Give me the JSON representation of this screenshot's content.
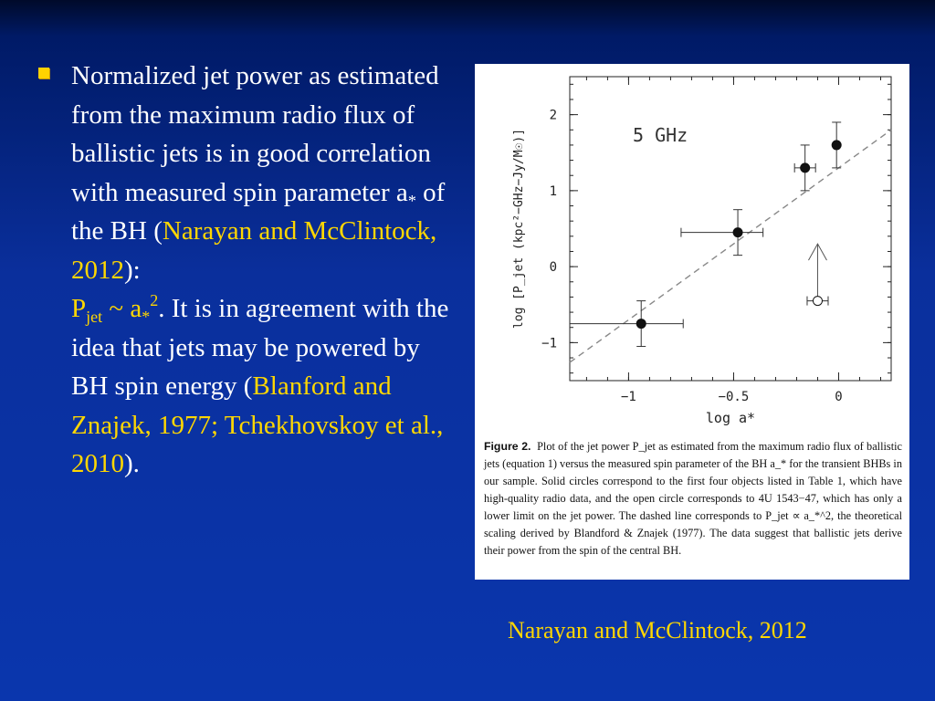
{
  "slide": {
    "bullet": {
      "part1": "Normalized jet power as estimated from the maximum radio flux of ballistic jets is in good correlation with measured spin parameter a",
      "part1_sub": "*",
      "part1_tail": " of  the BH (",
      "cite1": "Narayan and McClintock, 2012",
      "part2": "):",
      "formula_p": "P",
      "formula_sub": "jet",
      "formula_mid": " ~ a",
      "formula_sub2": "*",
      "formula_sup": "2",
      "part3": ". It is in agreement with the idea that jets may be powered by BH spin energy (",
      "cite2": "Blanford and Znajek, 1977; Tchekhovskoy et al., 2010",
      "part4": ")."
    },
    "footer_citation": "Narayan and McClintock, 2012"
  },
  "figure": {
    "caption_label": "Figure 2.",
    "caption_text": "Plot of the jet power P_jet as estimated from the maximum radio flux of ballistic jets (equation 1) versus the measured spin parameter of the BH a_* for the transient BHBs in our sample. Solid circles correspond to the first four objects listed in Table 1, which have high-quality radio data, and the open circle corresponds to 4U 1543−47, which has only a lower limit on the jet power. The dashed line corresponds to P_jet ∝ a_*^2, the theoretical scaling derived by Blandford & Znajek (1977). The data suggest that ballistic jets derive their power from the spin of the central BH."
  },
  "chart_data": {
    "type": "scatter",
    "title": "",
    "annotation": "5 GHz",
    "xlabel": "log a*",
    "ylabel": "log [P_jet (kpc²−GHz−Jy/M☉)]",
    "xlim": [
      -1.28,
      0.25
    ],
    "ylim": [
      -1.5,
      2.5
    ],
    "x_ticks": [
      -1,
      -0.5,
      0
    ],
    "x_tick_labels": [
      "−1",
      "−0.5",
      "0"
    ],
    "y_ticks": [
      -1,
      0,
      1,
      2
    ],
    "y_tick_labels": [
      "−1",
      "0",
      "1",
      "2"
    ],
    "grid": false,
    "points": [
      {
        "x": -0.94,
        "y": -0.75,
        "xerr": [
          0.34,
          0.2
        ],
        "yerr": [
          0.3,
          0.3
        ],
        "filled": true
      },
      {
        "x": -0.48,
        "y": 0.45,
        "xerr": [
          0.27,
          0.12
        ],
        "yerr": [
          0.3,
          0.3
        ],
        "filled": true
      },
      {
        "x": -0.16,
        "y": 1.3,
        "xerr": [
          0.05,
          0.05
        ],
        "yerr": [
          0.3,
          0.3
        ],
        "filled": true
      },
      {
        "x": -0.01,
        "y": 1.6,
        "xerr": [
          0,
          0
        ],
        "yerr": [
          0.3,
          0.3
        ],
        "filled": true
      },
      {
        "x": -0.1,
        "y": -0.45,
        "xerr": [
          0.05,
          0.05
        ],
        "lower_limit": true,
        "filled": false
      }
    ],
    "reference_line": {
      "label": "P_jet ∝ a*^2",
      "slope": 2,
      "intercept": 1.3,
      "style": "dashed"
    }
  }
}
